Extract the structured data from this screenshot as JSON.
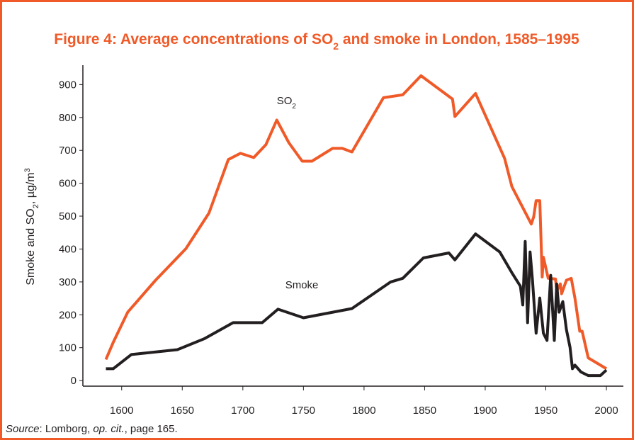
{
  "chart_data": {
    "type": "line",
    "title": [
      "Figure 4: Average concentrations of SO",
      "2",
      " and smoke in London, 1585–1995"
    ],
    "y_label": [
      "Smoke and SO",
      "2",
      ", µg/m",
      "3"
    ],
    "annotations": [
      {
        "text": [
          "SO",
          "2"
        ],
        "x": 1728,
        "y": 840
      },
      {
        "text": [
          "Smoke"
        ],
        "x": 1735,
        "y": 280
      }
    ],
    "source": [
      "Source",
      ": Lomborg, ",
      "op. cit.",
      ", page 165."
    ],
    "series": [
      {
        "name": "SO2",
        "color": "#f05a28",
        "x": [
          1587,
          1593,
          1605,
          1628,
          1653,
          1672,
          1688,
          1698,
          1709,
          1719,
          1728,
          1738,
          1749,
          1757,
          1774,
          1782,
          1790,
          1816,
          1832,
          1847,
          1873,
          1875,
          1892,
          1916,
          1922,
          1938,
          1940,
          1942,
          1945,
          1947,
          1948,
          1952,
          1958,
          1959,
          1962,
          1963,
          1967,
          1971,
          1974,
          1978,
          1980,
          1985,
          2000
        ],
        "values": [
          64,
          116,
          208,
          305,
          401,
          509,
          672,
          691,
          678,
          717,
          792,
          723,
          667,
          667,
          706,
          706,
          695,
          860,
          869,
          927,
          856,
          803,
          873,
          676,
          590,
          476,
          498,
          547,
          547,
          315,
          375,
          311,
          309,
          272,
          294,
          264,
          305,
          311,
          251,
          150,
          150,
          69,
          36
        ]
      },
      {
        "name": "Smoke",
        "color": "#231f20",
        "x": [
          1587,
          1593,
          1608,
          1646,
          1668,
          1692,
          1716,
          1729,
          1750,
          1790,
          1822,
          1832,
          1849,
          1870,
          1875,
          1892,
          1912,
          1922,
          1929,
          1931,
          1933,
          1935,
          1937,
          1939,
          1942,
          1945,
          1948,
          1951,
          1954,
          1957,
          1959,
          1961,
          1964,
          1967,
          1970,
          1972,
          1974,
          1979,
          1985,
          1995,
          2000
        ],
        "values": [
          36,
          36,
          79,
          94,
          127,
          176,
          176,
          217,
          191,
          219,
          300,
          311,
          373,
          388,
          367,
          446,
          391,
          328,
          287,
          230,
          423,
          176,
          391,
          305,
          144,
          251,
          144,
          122,
          320,
          122,
          294,
          208,
          240,
          155,
          101,
          36,
          47,
          26,
          15,
          15,
          32
        ]
      }
    ],
    "xlim": [
      1568,
      2014
    ],
    "xticks": [
      1600,
      1650,
      1700,
      1750,
      1800,
      1850,
      1900,
      1950,
      2000
    ],
    "ylim": [
      -17,
      959
    ],
    "yticks": [
      0,
      100,
      200,
      300,
      400,
      500,
      600,
      700,
      800,
      900
    ]
  }
}
